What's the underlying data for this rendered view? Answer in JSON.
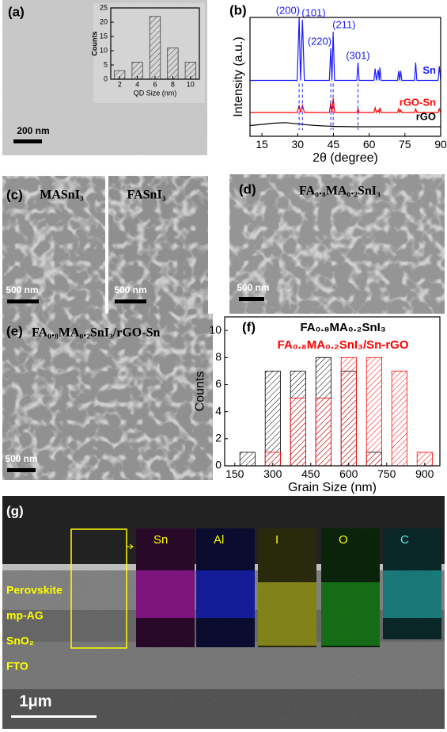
{
  "chart_data": [
    {
      "type": "bar",
      "xlabel": "QD Size (nm)",
      "ylabel": "Counts",
      "x": [
        2,
        4,
        6,
        8,
        10
      ],
      "values": [
        3,
        6,
        22,
        11,
        6
      ],
      "color": "#444444",
      "xlim": [
        1,
        11
      ],
      "ylim": [
        0,
        25
      ],
      "xticks": [
        2,
        4,
        6,
        8,
        10
      ],
      "yticks": [
        0,
        5,
        10,
        15,
        20,
        25
      ]
    },
    {
      "type": "line",
      "panel_label": "(b)",
      "xlabel": "2θ (degree)",
      "ylabel": "Intensity (a.u.)",
      "x": [
        10,
        20,
        25,
        29.8,
        30.6,
        31.2,
        32.0,
        32.8,
        38,
        43.3,
        43.9,
        44.4,
        44.9,
        45.5,
        54.8,
        55.3,
        55.8,
        62.0,
        62.5,
        63.0,
        63.8,
        64.2,
        64.5,
        65.0,
        71.9,
        72.4,
        72.8,
        73.2,
        73.7,
        79.0,
        79.5,
        80.0,
        88.9,
        89.4,
        90
      ],
      "series": [
        {
          "name": "Sn",
          "color": "#1a1aff",
          "values": [
            47,
            47,
            47,
            47,
            100,
            47,
            98,
            47,
            47,
            47,
            74,
            47,
            88,
            47,
            47,
            62,
            47,
            47,
            57,
            47,
            56,
            47,
            58,
            47,
            47,
            55,
            47,
            55,
            47,
            47,
            62,
            47,
            47,
            59,
            47
          ]
        },
        {
          "name": "rGO-Sn",
          "color": "#ff0000",
          "values": [
            20,
            20,
            20,
            20,
            26,
            20,
            26,
            20,
            20,
            20,
            28,
            20,
            32,
            20,
            20,
            23,
            20,
            20,
            24,
            20,
            22,
            20,
            24,
            20,
            20,
            23,
            20,
            22,
            20,
            20,
            23,
            20,
            20,
            23,
            20
          ]
        },
        {
          "name": "rGO",
          "color": "#000000",
          "values": [
            9,
            11,
            11.5,
            10.5,
            10.3,
            10.2,
            10,
            9.8,
            9,
            8.5,
            8.4,
            8.4,
            8.3,
            8.3,
            8,
            8,
            8,
            8,
            8,
            8,
            8,
            8,
            8,
            8,
            8,
            8,
            8,
            8,
            8,
            8,
            8,
            8,
            8,
            8,
            8
          ]
        }
      ],
      "peak_labels": [
        {
          "label": "(200)",
          "x": 30.6
        },
        {
          "label": "(101)",
          "x": 32.0
        },
        {
          "label": "(220)",
          "x": 43.9
        },
        {
          "label": "(211)",
          "x": 44.9
        },
        {
          "label": "(301)",
          "x": 55.3
        }
      ],
      "xlim": [
        10,
        90
      ],
      "ylim": [
        0,
        100
      ],
      "xticks": [
        15,
        30,
        45,
        60,
        75,
        90
      ],
      "peak_color": "#1a1aff"
    },
    {
      "type": "bar",
      "panel_label": "(f)",
      "xlabel": "Grain Size (nm)",
      "ylabel": "Counts",
      "x": [
        200,
        300,
        400,
        500,
        600,
        700,
        800,
        900
      ],
      "series": [
        {
          "name": "FA₀.₈MA₀.₂SnI₃",
          "color": "#000000",
          "values": [
            1,
            7,
            7,
            8,
            7,
            1,
            null,
            null
          ]
        },
        {
          "name": "FA₀.₈MA₀.₂SnI₃/Sn-rGO",
          "color": "#ff0000",
          "values": [
            null,
            1,
            5,
            5,
            8,
            8,
            7,
            1
          ]
        }
      ],
      "xlim": [
        110,
        960
      ],
      "ylim": [
        0,
        11
      ],
      "xticks": [
        150,
        300,
        450,
        600,
        750,
        900
      ],
      "yticks": [
        0,
        2,
        4,
        6,
        8,
        10
      ]
    }
  ],
  "images": {
    "a": {
      "label": "(a)",
      "scale_bar": "200 nm"
    },
    "c": {
      "label": "(c)",
      "left_title": "MASnI₃",
      "right_title": "FASnI₃",
      "left_scale_bar": "500 nm",
      "right_scale_bar": "500 nm"
    },
    "d": {
      "label": "(d)",
      "title": "FA₀.₈MA₀.₂SnI₃",
      "scale_bar": "500 nm"
    },
    "e": {
      "label": "(e)",
      "title": "FA₀.₈MA₀.₂SnI₃/rGO-Sn",
      "scale_bar": "500 nm"
    },
    "g": {
      "label": "(g)",
      "maps": [
        "Sn",
        "Al",
        "I",
        "O",
        "C"
      ],
      "layers": [
        "Perovskite",
        "mp-AG",
        "SnO₂",
        "FTO"
      ],
      "scale_bar": "1μm"
    }
  }
}
